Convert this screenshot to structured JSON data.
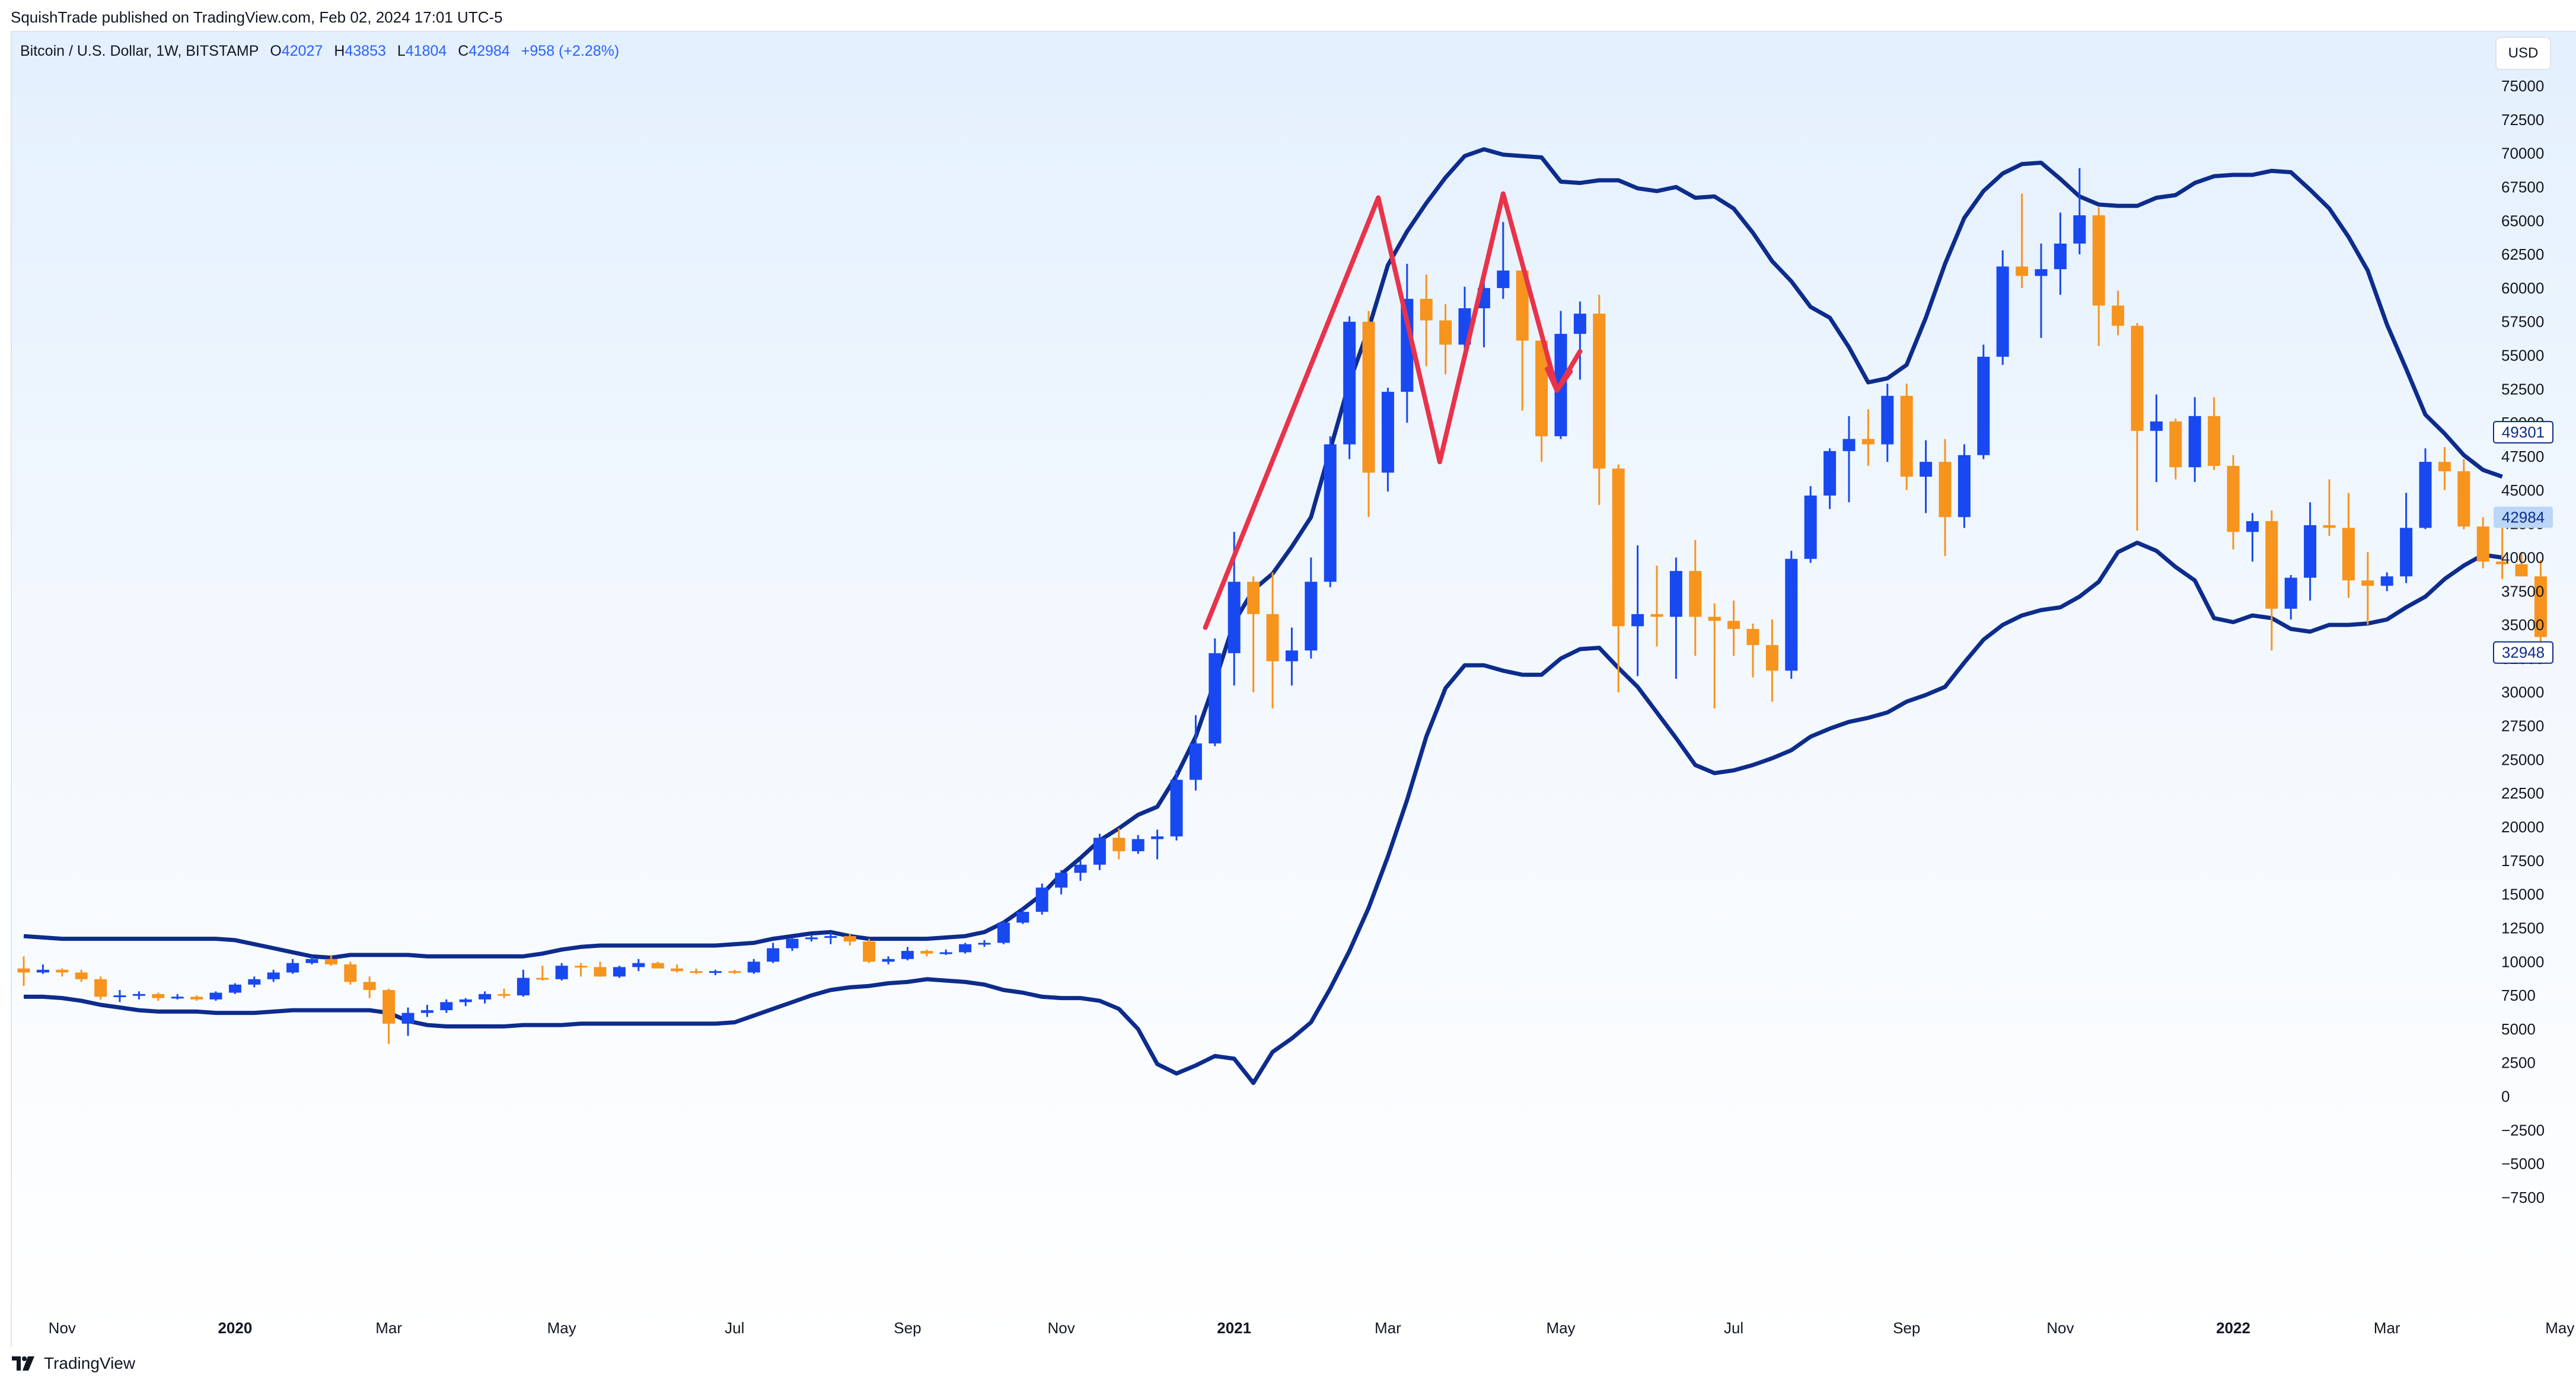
{
  "header": {
    "publisher_line": "SquishTrade published on TradingView.com, Feb 02, 2024 17:01 UTC-5"
  },
  "legend": {
    "symbol": "Bitcoin / U.S. Dollar, 1W, BITSTAMP",
    "o_label": "O",
    "o_value": "42027",
    "h_label": "H",
    "h_value": "43853",
    "l_label": "L",
    "l_value": "41804",
    "c_label": "C",
    "c_value": "42984",
    "change": "+958 (+2.28%)"
  },
  "currency_button": "USD",
  "footer": {
    "brand": "TradingView",
    "logo_icon": "tradingview-logo-icon"
  },
  "colors": {
    "up": "#1848f0",
    "down": "#f7941d",
    "band": "#0d2c8c",
    "drawing": "#e8334a",
    "accent": "#2962ff"
  },
  "chart_data": {
    "type": "candlestick",
    "title": "Bitcoin / U.S. Dollar, 1W, BITSTAMP",
    "ylim": [
      -7500,
      75000
    ],
    "y_ticks": [
      75000,
      72500,
      70000,
      67500,
      65000,
      62500,
      60000,
      57500,
      55000,
      52500,
      50000,
      47500,
      45000,
      42500,
      40000,
      37500,
      35000,
      32500,
      30000,
      27500,
      25000,
      22500,
      20000,
      17500,
      15000,
      12500,
      10000,
      7500,
      5000,
      2500,
      0,
      -2500,
      -5000,
      -7500
    ],
    "y_tick_labels": [
      "75000",
      "72500",
      "70000",
      "67500",
      "65000",
      "62500",
      "60000",
      "57500",
      "55000",
      "52500",
      "50000",
      "47500",
      "45000",
      "42500",
      "40000",
      "37500",
      "35000",
      "32500",
      "30000",
      "27500",
      "25000",
      "22500",
      "20000",
      "17500",
      "15000",
      "12500",
      "10000",
      "7500",
      "5000",
      "2500",
      "0",
      "−2500",
      "−5000",
      "−7500"
    ],
    "x_ticks": [
      {
        "label": "Nov",
        "week": 2,
        "bold": false
      },
      {
        "label": "2020",
        "week": 11,
        "bold": true
      },
      {
        "label": "Mar",
        "week": 19,
        "bold": false
      },
      {
        "label": "May",
        "week": 28,
        "bold": false
      },
      {
        "label": "Jul",
        "week": 37,
        "bold": false
      },
      {
        "label": "Sep",
        "week": 46,
        "bold": false
      },
      {
        "label": "Nov",
        "week": 54,
        "bold": false
      },
      {
        "label": "2021",
        "week": 63,
        "bold": true
      },
      {
        "label": "Mar",
        "week": 71,
        "bold": false
      },
      {
        "label": "May",
        "week": 80,
        "bold": false
      },
      {
        "label": "Jul",
        "week": 89,
        "bold": false
      },
      {
        "label": "Sep",
        "week": 98,
        "bold": false
      },
      {
        "label": "Nov",
        "week": 106,
        "bold": false
      },
      {
        "label": "2022",
        "week": 115,
        "bold": true
      },
      {
        "label": "Mar",
        "week": 123,
        "bold": false
      },
      {
        "label": "May",
        "week": 132,
        "bold": false
      }
    ],
    "price_labels": [
      {
        "value": 49301,
        "text": "49301",
        "style": "outline"
      },
      {
        "value": 42984,
        "text": "42984",
        "style": "filled"
      },
      {
        "value": 32948,
        "text": "32948",
        "style": "outline"
      }
    ],
    "candles": [
      [
        9500,
        10400,
        8200,
        9200
      ],
      [
        9200,
        9800,
        9100,
        9400
      ],
      [
        9400,
        9500,
        8900,
        9200
      ],
      [
        9200,
        9400,
        8500,
        8700
      ],
      [
        8700,
        8900,
        7200,
        7400
      ],
      [
        7400,
        7900,
        7000,
        7500
      ],
      [
        7500,
        7800,
        7200,
        7600
      ],
      [
        7600,
        7700,
        7100,
        7300
      ],
      [
        7300,
        7600,
        7200,
        7400
      ],
      [
        7400,
        7500,
        7100,
        7200
      ],
      [
        7200,
        7800,
        7100,
        7700
      ],
      [
        7700,
        8400,
        7600,
        8300
      ],
      [
        8300,
        8900,
        8100,
        8700
      ],
      [
        8700,
        9400,
        8500,
        9200
      ],
      [
        9200,
        10200,
        9100,
        9900
      ],
      [
        9900,
        10400,
        9800,
        10200
      ],
      [
        10200,
        10500,
        9700,
        9800
      ],
      [
        9800,
        10000,
        8300,
        8500
      ],
      [
        8500,
        8900,
        7300,
        7900
      ],
      [
        7900,
        8000,
        3900,
        5400
      ],
      [
        5400,
        6600,
        4500,
        6200
      ],
      [
        6200,
        6800,
        5900,
        6400
      ],
      [
        6400,
        7200,
        6200,
        7000
      ],
      [
        7000,
        7300,
        6700,
        7200
      ],
      [
        7200,
        7800,
        6900,
        7600
      ],
      [
        7600,
        8000,
        7300,
        7500
      ],
      [
        7500,
        9400,
        7400,
        8800
      ],
      [
        8800,
        9700,
        8600,
        8700
      ],
      [
        8700,
        9900,
        8600,
        9700
      ],
      [
        9700,
        9900,
        8900,
        9600
      ],
      [
        9600,
        10000,
        8900,
        8900
      ],
      [
        8900,
        9700,
        8800,
        9600
      ],
      [
        9600,
        10200,
        9300,
        9900
      ],
      [
        9900,
        10000,
        9500,
        9500
      ],
      [
        9500,
        9800,
        9200,
        9300
      ],
      [
        9300,
        9500,
        9100,
        9200
      ],
      [
        9200,
        9400,
        9000,
        9300
      ],
      [
        9300,
        9400,
        9100,
        9200
      ],
      [
        9200,
        10200,
        9100,
        10000
      ],
      [
        10000,
        11400,
        9900,
        11000
      ],
      [
        11000,
        11800,
        10800,
        11700
      ],
      [
        11700,
        12000,
        11500,
        11800
      ],
      [
        11800,
        12200,
        11300,
        11900
      ],
      [
        11900,
        12100,
        11200,
        11500
      ],
      [
        11500,
        11700,
        9900,
        10000
      ],
      [
        10000,
        10400,
        9800,
        10200
      ],
      [
        10200,
        11100,
        10100,
        10800
      ],
      [
        10800,
        10900,
        10400,
        10600
      ],
      [
        10600,
        10900,
        10500,
        10700
      ],
      [
        10700,
        11400,
        10600,
        11300
      ],
      [
        11300,
        11600,
        11100,
        11400
      ],
      [
        11400,
        13000,
        11300,
        12900
      ],
      [
        12900,
        13900,
        12800,
        13700
      ],
      [
        13700,
        15800,
        13500,
        15500
      ],
      [
        15500,
        16800,
        15000,
        16600
      ],
      [
        16600,
        17500,
        16000,
        17200
      ],
      [
        17200,
        19500,
        16800,
        19200
      ],
      [
        19200,
        19900,
        17600,
        18200
      ],
      [
        18200,
        19400,
        18000,
        19100
      ],
      [
        19100,
        19800,
        17600,
        19300
      ],
      [
        19300,
        24200,
        19000,
        23500
      ],
      [
        23500,
        28300,
        22700,
        26200
      ],
      [
        26200,
        34000,
        26000,
        32900
      ],
      [
        32900,
        41900,
        30500,
        38200
      ],
      [
        38200,
        38600,
        30000,
        35800
      ],
      [
        35800,
        38900,
        28800,
        32300
      ],
      [
        32300,
        34800,
        30500,
        33100
      ],
      [
        33100,
        40000,
        32500,
        38200
      ],
      [
        38200,
        49000,
        37800,
        48400
      ],
      [
        48400,
        57900,
        47300,
        57500
      ],
      [
        57500,
        58300,
        43000,
        46300
      ],
      [
        46300,
        52600,
        44900,
        52300
      ],
      [
        52300,
        61800,
        50000,
        59200
      ],
      [
        59200,
        61000,
        54200,
        57600
      ],
      [
        57600,
        58800,
        53600,
        55800
      ],
      [
        55800,
        60100,
        55100,
        58500
      ],
      [
        58500,
        61200,
        55600,
        60000
      ],
      [
        60000,
        64900,
        59200,
        61300
      ],
      [
        61300,
        61700,
        50900,
        56100
      ],
      [
        56100,
        56300,
        47100,
        49000
      ],
      [
        49000,
        58300,
        48800,
        56600
      ],
      [
        56600,
        59000,
        53200,
        58100
      ],
      [
        58100,
        59500,
        43900,
        46600
      ],
      [
        46600,
        46900,
        30000,
        34900
      ],
      [
        34900,
        40900,
        31200,
        35800
      ],
      [
        35800,
        39400,
        33400,
        35600
      ],
      [
        35600,
        40000,
        31000,
        39000
      ],
      [
        39000,
        41300,
        32700,
        35600
      ],
      [
        35600,
        36600,
        28800,
        35300
      ],
      [
        35300,
        36800,
        32700,
        34700
      ],
      [
        34700,
        35100,
        31100,
        33500
      ],
      [
        33500,
        35400,
        29300,
        31600
      ],
      [
        31600,
        40500,
        31000,
        39900
      ],
      [
        39900,
        45300,
        39600,
        44600
      ],
      [
        44600,
        48100,
        43600,
        47900
      ],
      [
        47900,
        50500,
        44100,
        48800
      ],
      [
        48800,
        51000,
        46800,
        48400
      ],
      [
        48400,
        52900,
        47100,
        52000
      ],
      [
        52000,
        52900,
        45000,
        46000
      ],
      [
        46000,
        48700,
        43300,
        47100
      ],
      [
        47100,
        48800,
        40100,
        43000
      ],
      [
        43000,
        48400,
        42200,
        47600
      ],
      [
        47600,
        55800,
        47300,
        54900
      ],
      [
        54900,
        62800,
        54300,
        61600
      ],
      [
        61600,
        67000,
        60000,
        60900
      ],
      [
        60900,
        63300,
        56300,
        61400
      ],
      [
        61400,
        65600,
        59500,
        63300
      ],
      [
        63300,
        68900,
        62500,
        65400
      ],
      [
        65400,
        66000,
        55700,
        58700
      ],
      [
        58700,
        59800,
        56500,
        57200
      ],
      [
        57200,
        57400,
        42000,
        49400
      ],
      [
        49400,
        52100,
        45600,
        50100
      ],
      [
        50100,
        50300,
        45800,
        46700
      ],
      [
        46700,
        51900,
        45600,
        50500
      ],
      [
        50500,
        51900,
        46500,
        46800
      ],
      [
        46800,
        47600,
        40600,
        41900
      ],
      [
        41900,
        43300,
        39700,
        42700
      ],
      [
        42700,
        43500,
        33100,
        36200
      ],
      [
        36200,
        38700,
        35400,
        38500
      ],
      [
        38500,
        44100,
        36800,
        42400
      ],
      [
        42400,
        45800,
        41600,
        42200
      ],
      [
        42200,
        44800,
        37000,
        38300
      ],
      [
        38300,
        40400,
        35000,
        37900
      ],
      [
        37900,
        38900,
        37500,
        38600
      ],
      [
        38600,
        44800,
        38100,
        42200
      ],
      [
        42200,
        48100,
        42100,
        47100
      ],
      [
        47100,
        48200,
        45000,
        46400
      ],
      [
        46400,
        47300,
        42100,
        42300
      ],
      [
        42300,
        43000,
        39200,
        39700
      ],
      [
        39700,
        42900,
        38400,
        39500
      ],
      [
        39500,
        40400,
        38600,
        38600
      ],
      [
        38600,
        39800,
        33700,
        34100
      ]
    ],
    "bollinger_upper": [
      11900,
      11800,
      11700,
      11700,
      11700,
      11700,
      11700,
      11700,
      11700,
      11700,
      11700,
      11600,
      11300,
      11000,
      10700,
      10400,
      10300,
      10500,
      10500,
      10500,
      10500,
      10400,
      10400,
      10400,
      10400,
      10400,
      10400,
      10600,
      10900,
      11100,
      11200,
      11200,
      11200,
      11200,
      11200,
      11200,
      11200,
      11300,
      11400,
      11700,
      11900,
      12100,
      12200,
      11900,
      11700,
      11700,
      11700,
      11700,
      11800,
      11900,
      12200,
      12900,
      13900,
      15000,
      16500,
      17700,
      19000,
      19900,
      20900,
      21500,
      23800,
      26700,
      30800,
      35200,
      37600,
      38800,
      40800,
      43000,
      48000,
      53000,
      57000,
      61700,
      64200,
      66300,
      68200,
      69800,
      70300,
      69900,
      69800,
      69700,
      67900,
      67800,
      68000,
      68000,
      67400,
      67200,
      67500,
      66700,
      66800,
      65900,
      64100,
      62000,
      60500,
      58600,
      57800,
      55600,
      53000,
      53300,
      54300,
      57800,
      61800,
      65200,
      67200,
      68500,
      69200,
      69300,
      68100,
      66800,
      66200,
      66100,
      66100,
      66700,
      66900,
      67800,
      68300,
      68400,
      68400,
      68700,
      68600,
      67300,
      65900,
      63800,
      61300,
      57300,
      54000,
      50600,
      49200,
      47600,
      46500,
      46000
    ],
    "bollinger_lower": [
      7400,
      7400,
      7300,
      7100,
      6800,
      6600,
      6400,
      6300,
      6300,
      6300,
      6200,
      6200,
      6200,
      6300,
      6400,
      6400,
      6400,
      6400,
      6400,
      6200,
      5600,
      5300,
      5200,
      5200,
      5200,
      5200,
      5300,
      5300,
      5300,
      5400,
      5400,
      5400,
      5400,
      5400,
      5400,
      5400,
      5400,
      5500,
      6000,
      6500,
      7000,
      7500,
      7900,
      8100,
      8200,
      8400,
      8500,
      8700,
      8600,
      8500,
      8300,
      7900,
      7700,
      7400,
      7300,
      7300,
      7100,
      6500,
      5000,
      2400,
      1700,
      2300,
      3000,
      2800,
      1000,
      3300,
      4300,
      5500,
      8000,
      10800,
      14000,
      17800,
      22000,
      26700,
      30300,
      32000,
      32000,
      31600,
      31300,
      31300,
      32500,
      33200,
      33300,
      31800,
      30400,
      28500,
      26600,
      24600,
      24000,
      24200,
      24600,
      25100,
      25700,
      26700,
      27300,
      27800,
      28100,
      28500,
      29300,
      29800,
      30400,
      32200,
      33900,
      35000,
      35700,
      36100,
      36300,
      37100,
      38200,
      40400,
      41100,
      40500,
      39300,
      38300,
      35500,
      35200,
      35700,
      35500,
      34700,
      34500,
      35000,
      35000,
      35100,
      35400,
      36300,
      37100,
      38400,
      39400,
      40200,
      40000
    ],
    "annotations": {
      "trend_line": [
        [
          61.5,
          34800
        ],
        [
          70.5,
          66700
        ]
      ],
      "m_pattern": [
        [
          70.5,
          66700
        ],
        [
          73.7,
          47100
        ],
        [
          77.0,
          67000
        ],
        [
          79.8,
          52400
        ],
        [
          81.0,
          55300
        ]
      ],
      "m_arrow_head": [
        [
          79.3,
          54000
        ],
        [
          79.8,
          52400
        ],
        [
          80.5,
          53800
        ]
      ]
    }
  }
}
